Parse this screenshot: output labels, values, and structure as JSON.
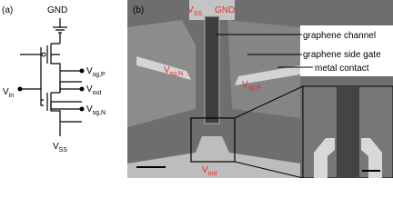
{
  "panel_a": {
    "label": "(a)",
    "gnd": "GND",
    "vin": {
      "base": "V",
      "sub": "in"
    },
    "vsgp": {
      "base": "V",
      "sub": "sg,P"
    },
    "vout": {
      "base": "V",
      "sub": "out"
    },
    "vsgn": {
      "base": "V",
      "sub": "sg,N"
    },
    "vss": {
      "base": "V",
      "sub": "SS"
    }
  },
  "panel_b": {
    "label": "(b)",
    "vss": {
      "base": "V",
      "sub": "SS"
    },
    "gnd": "GND",
    "vsgn": {
      "base": "V",
      "sub": "sg,N"
    },
    "vsgp": {
      "base": "V",
      "sub": "sg,P"
    },
    "vout": {
      "base": "V",
      "sub": "out"
    },
    "callouts": [
      "graphene channel",
      "graphene side gate",
      "metal contact"
    ]
  }
}
